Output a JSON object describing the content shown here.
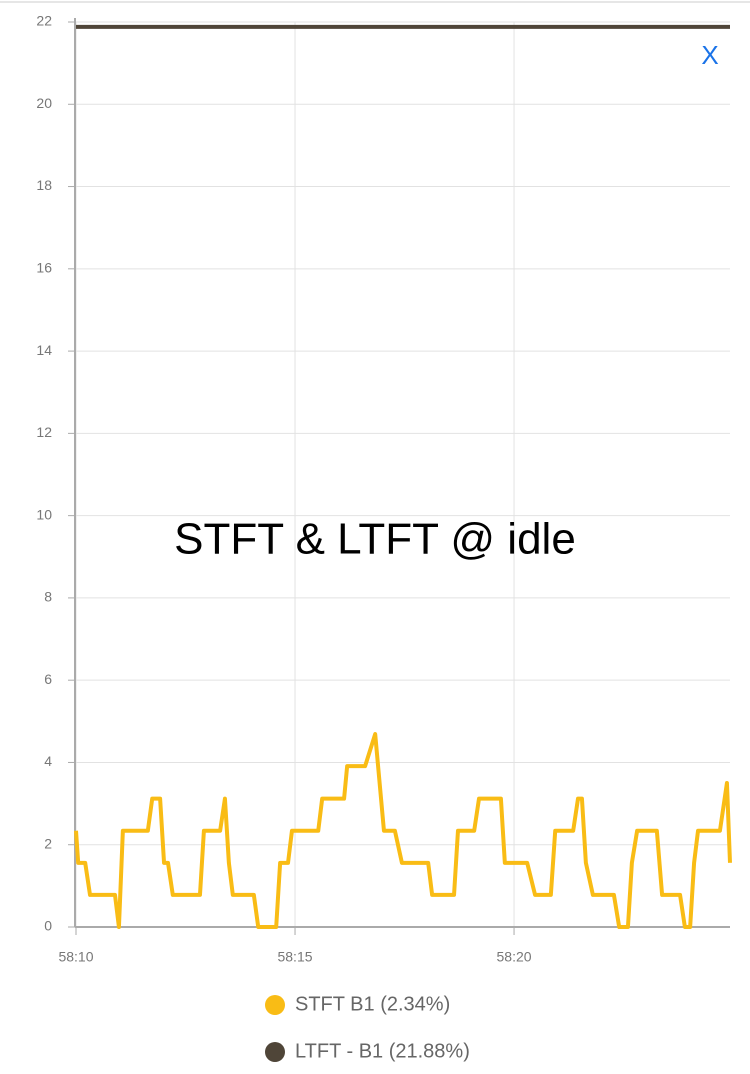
{
  "chart_data": {
    "type": "line",
    "title": "STFT & LTFT @ idle",
    "xlim": [
      3490,
      3504.93
    ],
    "xticks": [
      {
        "value": 3490,
        "label": "58:10"
      },
      {
        "value": 3495,
        "label": "58:15"
      },
      {
        "value": 3500,
        "label": "58:20"
      }
    ],
    "ylim": [
      0,
      22
    ],
    "yticks": [
      0,
      2,
      4,
      6,
      8,
      10,
      12,
      14,
      16,
      18,
      20,
      22
    ],
    "grid": true,
    "series": [
      {
        "name": "STFT B1 (2.34%)",
        "color": "#f9bc15",
        "x": [
          3490,
          3490.05,
          3490.21,
          3490.32,
          3490.89,
          3490.98,
          3491.07,
          3491.64,
          3491.74,
          3491.92,
          3492.01,
          3492.1,
          3492.21,
          3492.83,
          3492.92,
          3493.29,
          3493.4,
          3493.49,
          3493.58,
          3494.06,
          3494.16,
          3494.57,
          3494.66,
          3494.84,
          3494.93,
          3495.53,
          3495.62,
          3496.12,
          3496.19,
          3496.6,
          3496.83,
          3497.03,
          3497.28,
          3497.44,
          3498.04,
          3498.13,
          3498.63,
          3498.72,
          3499.09,
          3499.2,
          3499.7,
          3499.79,
          3500.3,
          3500.48,
          3500.84,
          3500.94,
          3501.35,
          3501.46,
          3501.55,
          3501.64,
          3501.8,
          3502.28,
          3502.4,
          3502.6,
          3502.69,
          3502.81,
          3503.26,
          3503.38,
          3503.79,
          3503.9,
          3504.02,
          3504.11,
          3504.2,
          3504.7,
          3504.86,
          3504.93
        ],
        "values": [
          2.34,
          1.56,
          1.56,
          0.78,
          0.78,
          0,
          2.34,
          2.34,
          3.12,
          3.12,
          1.56,
          1.56,
          0.78,
          0.78,
          2.34,
          2.34,
          3.12,
          1.56,
          0.78,
          0.78,
          0,
          0,
          1.56,
          1.56,
          2.34,
          2.34,
          3.12,
          3.12,
          3.91,
          3.91,
          4.69,
          2.34,
          2.34,
          1.56,
          1.56,
          0.78,
          0.78,
          2.34,
          2.34,
          3.12,
          3.12,
          1.56,
          1.56,
          0.78,
          0.78,
          2.34,
          2.34,
          3.12,
          3.12,
          1.56,
          0.78,
          0.78,
          0,
          0,
          1.56,
          2.34,
          2.34,
          0.78,
          0.78,
          0,
          0,
          1.56,
          2.34,
          2.34,
          3.5,
          1.56
        ]
      },
      {
        "name": "LTFT - B1 (21.88%)",
        "color": "#4f4538",
        "x": [
          3490,
          3504.93
        ],
        "values": [
          21.88,
          21.88
        ]
      }
    ]
  },
  "close_button": "X"
}
